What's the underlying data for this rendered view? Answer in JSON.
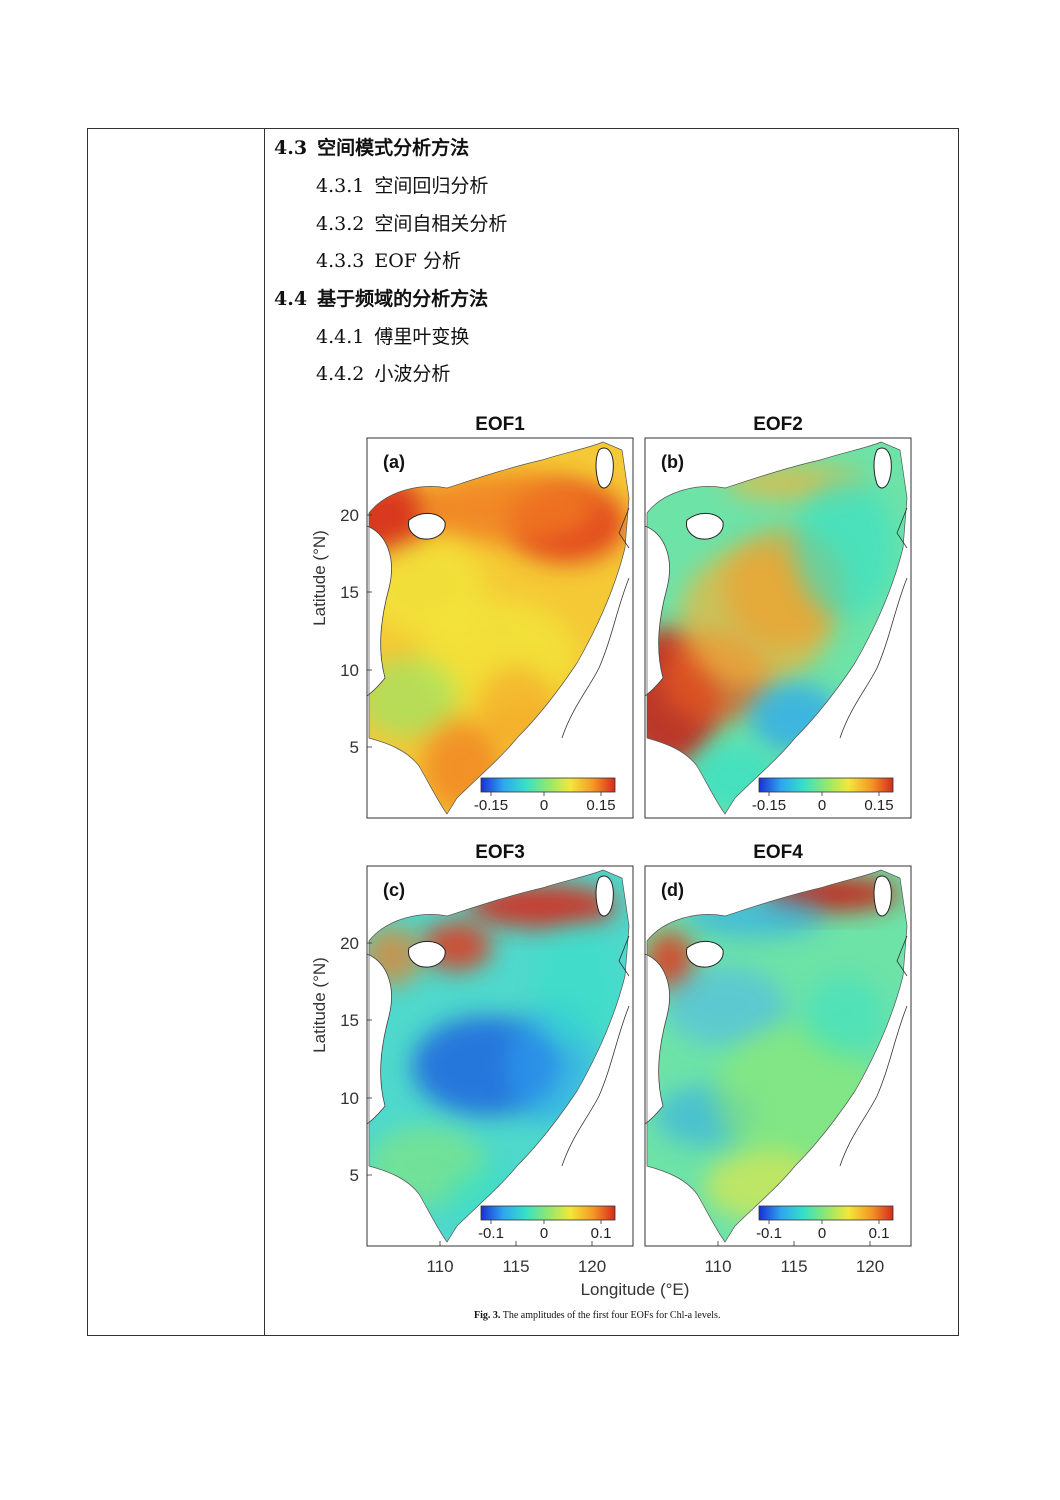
{
  "outline": [
    {
      "level": 1,
      "number": "4.3",
      "text": "空间模式分析方法"
    },
    {
      "level": 2,
      "number": "4.3.1",
      "text": "空间回归分析"
    },
    {
      "level": 2,
      "number": "4.3.2",
      "text": "空间自相关分析"
    },
    {
      "level": 2,
      "number": "4.3.3",
      "text": "EOF 分析"
    },
    {
      "level": 1,
      "number": "4.4",
      "text": "基于频域的分析方法"
    },
    {
      "level": 2,
      "number": "4.4.1",
      "text": "傅里叶变换"
    },
    {
      "level": 2,
      "number": "4.4.2",
      "text": "小波分析"
    }
  ],
  "figure": {
    "caption_label": "Fig. 3.",
    "caption_text": "The amplitudes of the first four EOFs for Chl-a levels.",
    "ylabel": "Latitude (°N)",
    "xlabel": "Longitude (°E)",
    "panels": [
      {
        "title": "EOF1",
        "tag": "(a)",
        "cbar_ticks": [
          "-0.15",
          "0",
          "0.15"
        ],
        "pattern": "eof1"
      },
      {
        "title": "EOF2",
        "tag": "(b)",
        "cbar_ticks": [
          "-0.15",
          "0",
          "0.15"
        ],
        "pattern": "eof2"
      },
      {
        "title": "EOF3",
        "tag": "(c)",
        "cbar_ticks": [
          "-0.1",
          "0",
          "0.1"
        ],
        "pattern": "eof3"
      },
      {
        "title": "EOF4",
        "tag": "(d)",
        "cbar_ticks": [
          "-0.1",
          "0",
          "0.1"
        ],
        "pattern": "eof4"
      }
    ],
    "yticks": [
      "20",
      "15",
      "10",
      "5"
    ],
    "xticks": [
      "110",
      "115",
      "120"
    ],
    "colormap": [
      "#1a2fd6",
      "#2ea6f0",
      "#36e0c8",
      "#8fe870",
      "#f2e83a",
      "#f59a25",
      "#d62a1e"
    ]
  }
}
